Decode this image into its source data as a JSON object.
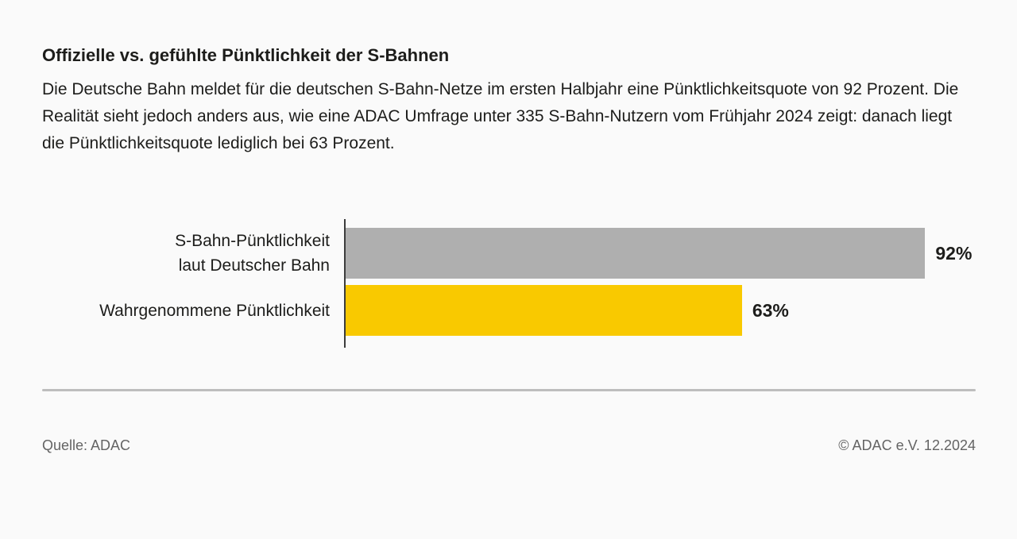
{
  "page": {
    "background_color": "#fafafa",
    "text_color": "#1d1d1b",
    "divider_color": "#bdbdbd",
    "footer_text_color": "#646464"
  },
  "header": {
    "title": "Offizielle vs. gefühlte Pünktlichkeit der S-Bahnen",
    "description": "Die Deutsche Bahn meldet für die deutschen S-Bahn-Netze im ersten Halbjahr eine Pünktlichkeitsquote von 92 Prozent. Die Realität sieht jedoch anders aus, wie eine ADAC Umfrage unter 335 S-Bahn-Nutzern vom Frühjahr 2024 zeigt: danach liegt die Pünktlichkeitsquote lediglich bei 63 Prozent."
  },
  "chart_data": {
    "type": "bar",
    "orientation": "horizontal",
    "title": "Offizielle vs. gefühlte Pünktlichkeit der S-Bahnen",
    "categories": [
      "S-Bahn-Pünktlichkeit laut Deutscher Bahn",
      "Wahrgenommene Pünktlichkeit"
    ],
    "category_lines": [
      [
        "S-Bahn-Pünktlichkeit",
        "laut Deutscher Bahn"
      ],
      [
        "Wahrgenommene Pünktlichkeit"
      ]
    ],
    "values": [
      92,
      63
    ],
    "value_labels": [
      "92%",
      "63%"
    ],
    "unit": "%",
    "xlim": [
      0,
      100
    ],
    "bar_colors": [
      "#afafaf",
      "#f9c900"
    ],
    "axis_color": "#3c3c3c",
    "grid": false,
    "legend": false
  },
  "footer": {
    "source": "Quelle: ADAC",
    "copyright": "© ADAC e.V. 12.2024"
  }
}
